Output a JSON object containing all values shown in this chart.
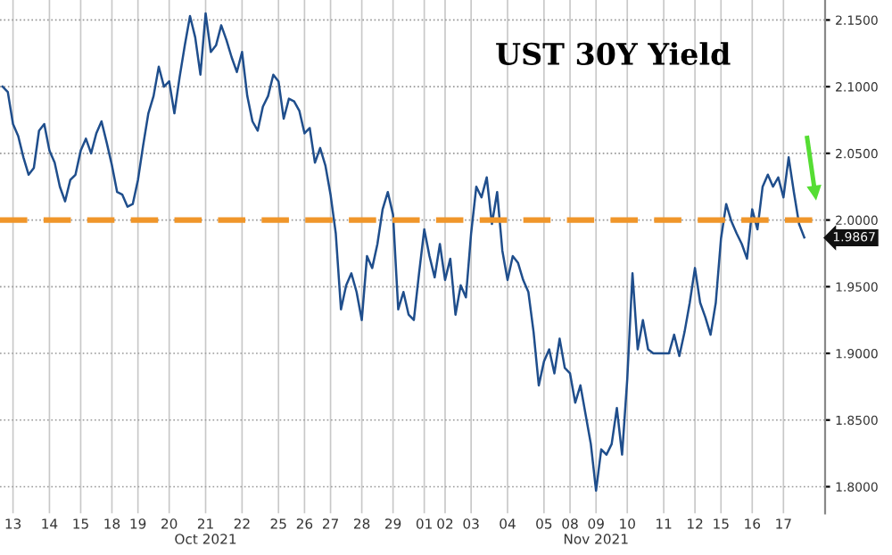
{
  "chart_data": {
    "type": "line",
    "title": "UST 30Y Yield",
    "categories": [
      null,
      null,
      "13",
      null,
      null,
      null,
      null,
      null,
      null,
      "14",
      null,
      null,
      null,
      null,
      null,
      "15",
      null,
      null,
      null,
      null,
      null,
      "18",
      null,
      null,
      null,
      null,
      "19",
      null,
      null,
      null,
      null,
      null,
      "20",
      null,
      null,
      null,
      null,
      null,
      null,
      "21\nOct 2021",
      null,
      null,
      null,
      null,
      null,
      null,
      "22",
      null,
      null,
      null,
      null,
      null,
      null,
      "25",
      null,
      null,
      null,
      null,
      "26",
      null,
      null,
      null,
      null,
      "27",
      null,
      null,
      null,
      null,
      null,
      "28",
      null,
      null,
      null,
      null,
      null,
      "29",
      null,
      null,
      null,
      null,
      null,
      "01",
      null,
      null,
      null,
      "02",
      null,
      null,
      null,
      null,
      "03",
      null,
      null,
      null,
      null,
      null,
      null,
      "04",
      null,
      null,
      null,
      null,
      null,
      null,
      "05",
      null,
      null,
      null,
      null,
      "08",
      null,
      null,
      null,
      null,
      "09\nNov 2021",
      null,
      null,
      null,
      null,
      null,
      "10",
      null,
      null,
      null,
      null,
      null,
      null,
      "11",
      null,
      null,
      null,
      null,
      null,
      "12",
      null,
      null,
      null,
      null,
      "15",
      null,
      null,
      null,
      null,
      null,
      "16",
      null,
      null,
      null,
      null,
      null,
      "17",
      null,
      null,
      null,
      null
    ],
    "series": [
      {
        "color": "#1f4e8c",
        "values": [
          2.1,
          2.096,
          2.072,
          2.063,
          2.047,
          2.034,
          2.039,
          2.067,
          2.072,
          2.052,
          2.043,
          2.025,
          2.014,
          2.03,
          2.034,
          2.052,
          2.061,
          2.05,
          2.065,
          2.074,
          2.058,
          2.041,
          2.021,
          2.019,
          2.01,
          2.012,
          2.03,
          2.056,
          2.08,
          2.093,
          2.115,
          2.1,
          2.104,
          2.08,
          2.107,
          2.131,
          2.153,
          2.137,
          2.109,
          2.155,
          2.126,
          2.131,
          2.146,
          2.135,
          2.122,
          2.111,
          2.126,
          2.093,
          2.074,
          2.067,
          2.085,
          2.093,
          2.109,
          2.104,
          2.076,
          2.091,
          2.089,
          2.082,
          2.065,
          2.069,
          2.043,
          2.054,
          2.041,
          2.019,
          1.99,
          1.933,
          1.951,
          1.96,
          1.946,
          1.925,
          1.973,
          1.964,
          1.982,
          2.008,
          2.021,
          2.004,
          1.933,
          1.946,
          1.929,
          1.925,
          1.96,
          1.993,
          1.973,
          1.957,
          1.982,
          1.955,
          1.971,
          1.929,
          1.951,
          1.942,
          1.99,
          2.025,
          2.017,
          2.032,
          1.997,
          2.021,
          1.977,
          1.955,
          1.973,
          1.968,
          1.955,
          1.946,
          1.916,
          1.876,
          1.894,
          1.903,
          1.885,
          1.911,
          1.889,
          1.885,
          1.863,
          1.876,
          1.854,
          1.832,
          1.797,
          1.828,
          1.824,
          1.832,
          1.859,
          1.824,
          1.881,
          1.96,
          1.903,
          1.925,
          1.903,
          1.9,
          1.9,
          1.9,
          1.9,
          1.914,
          1.898,
          1.916,
          1.938,
          1.964,
          1.938,
          1.927,
          1.914,
          1.938,
          1.986,
          2.012,
          1.999,
          1.99,
          1.982,
          1.971,
          2.008,
          1.993,
          2.025,
          2.034,
          2.025,
          2.032,
          2.017,
          2.047,
          2.021,
          1.997,
          1.987
        ]
      }
    ],
    "ylim": [
      1.78,
      2.165
    ],
    "yticks": [
      {
        "value": 1.8,
        "label": "1.8000"
      },
      {
        "value": 1.85,
        "label": "1.8500"
      },
      {
        "value": 1.9,
        "label": "1.9000"
      },
      {
        "value": 1.95,
        "label": "1.9500"
      },
      {
        "value": 2.0,
        "label": "2.0000"
      },
      {
        "value": 2.05,
        "label": "2.0500"
      },
      {
        "value": 2.1,
        "label": "2.1000"
      },
      {
        "value": 2.15,
        "label": "2.1500"
      }
    ],
    "ref_lines": [
      {
        "axis": "y",
        "value": 2.0,
        "color": "#f0962a",
        "line_style": "dashed"
      }
    ],
    "annotations": [
      {
        "text": "1.9867",
        "y": 1.9867
      }
    ],
    "grid": true
  }
}
